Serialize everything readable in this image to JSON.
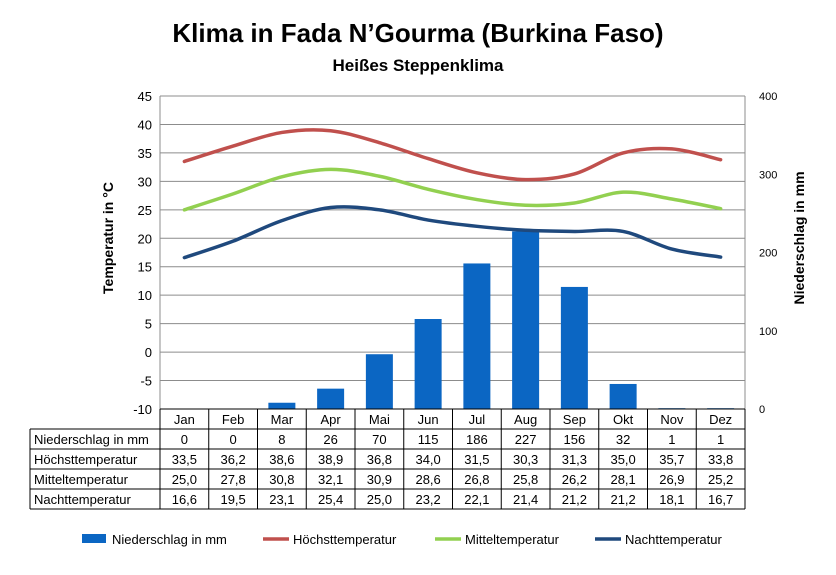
{
  "chart_data": {
    "type": "bar",
    "title": "Klima in Fada N’Gourma (Burkina Faso)",
    "subtitle": "Heißes Steppenklima",
    "ylabel_left": "Temperatur in °C",
    "ylabel_right": "Niederschlag in mm",
    "ylim_left": [
      -10,
      45
    ],
    "yticks_left": [
      -10,
      -5,
      0,
      5,
      10,
      15,
      20,
      25,
      30,
      35,
      40,
      45
    ],
    "ylim_right": [
      0,
      400
    ],
    "yticks_right": [
      0,
      100,
      200,
      300,
      400
    ],
    "grid": true,
    "legend_position": "bottom",
    "categories": [
      "Jan",
      "Feb",
      "Mar",
      "Apr",
      "Mai",
      "Jun",
      "Jul",
      "Aug",
      "Sep",
      "Okt",
      "Nov",
      "Dez"
    ],
    "series": [
      {
        "name": "Niederschlag in mm",
        "type": "bar",
        "axis": "right",
        "color": "#0b66c3",
        "values": [
          "0",
          "0",
          "8",
          "26",
          "70",
          "115",
          "186",
          "227",
          "156",
          "32",
          "1",
          "1"
        ]
      },
      {
        "name": "Höchsttemperatur",
        "type": "line",
        "axis": "left",
        "color": "#c0504d",
        "values": [
          "33,5",
          "36,2",
          "38,6",
          "38,9",
          "36,8",
          "34,0",
          "31,5",
          "30,3",
          "31,3",
          "35,0",
          "35,7",
          "33,8"
        ]
      },
      {
        "name": "Mitteltemperatur",
        "type": "line",
        "axis": "left",
        "color": "#92d050",
        "values": [
          "25,0",
          "27,8",
          "30,8",
          "32,1",
          "30,9",
          "28,6",
          "26,8",
          "25,8",
          "26,2",
          "28,1",
          "26,9",
          "25,2"
        ]
      },
      {
        "name": "Nachttemperatur",
        "type": "line",
        "axis": "left",
        "color": "#1f497d",
        "values": [
          "16,6",
          "19,5",
          "23,1",
          "25,4",
          "25,0",
          "23,2",
          "22,1",
          "21,4",
          "21,2",
          "21,2",
          "18,1",
          "16,7"
        ]
      }
    ]
  }
}
